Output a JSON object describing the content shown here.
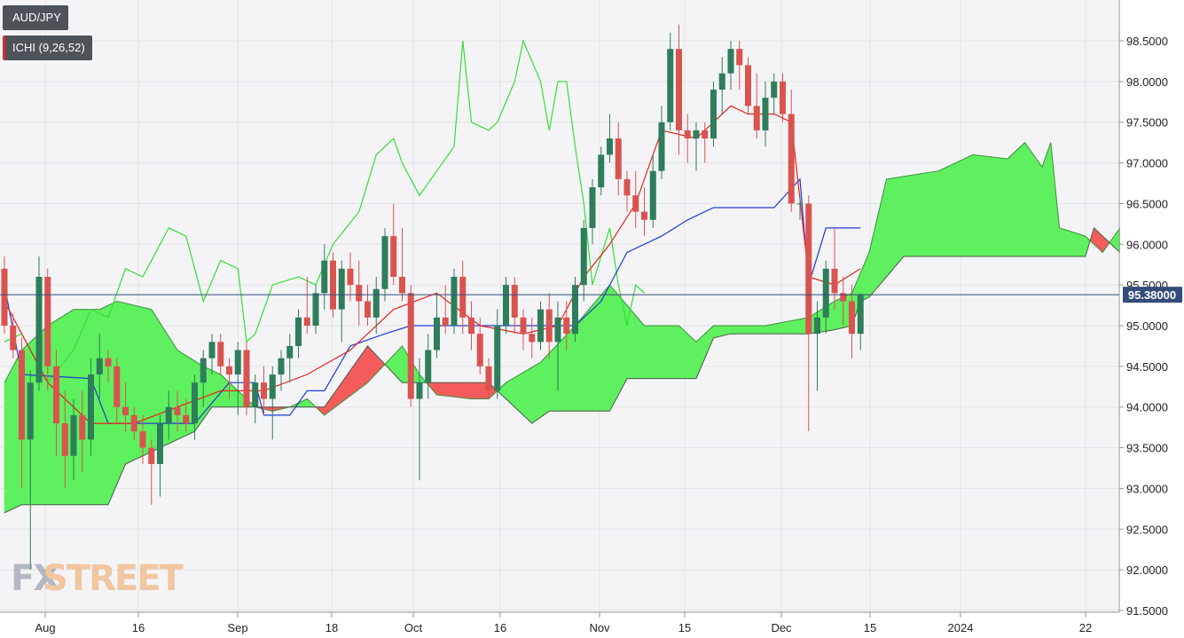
{
  "chart_data": {
    "type": "candlestick",
    "symbol": "AUD/JPY",
    "indicator": "ICHI (9,26,52)",
    "last_price": "95.38000",
    "last_value": 95.38,
    "ylim": [
      91.5,
      98.9
    ],
    "y_ticks": [
      "98.5000",
      "98.0000",
      "97.5000",
      "97.0000",
      "96.5000",
      "96.0000",
      "95.5000",
      "95.0000",
      "94.5000",
      "94.0000",
      "93.5000",
      "93.0000",
      "92.5000",
      "92.0000",
      "91.5000"
    ],
    "x_ticks": [
      "Aug",
      "16",
      "Sep",
      "18",
      "Oct",
      "16",
      "Nov",
      "15",
      "Dec",
      "15",
      "2024",
      "22"
    ],
    "grid": true,
    "colors": {
      "up": "#2e7d5b",
      "down": "#d9534f",
      "tenkan": "#e8201a",
      "kijun": "#1f3ad6",
      "chikou": "#33e033",
      "kumo_bull": "#5ef05e",
      "kumo_bear": "#f45c5c",
      "last_line": "#324d7a"
    },
    "candles": [
      [
        95.7,
        95.85,
        94.9,
        95.0
      ],
      [
        95.0,
        95.15,
        94.6,
        94.7
      ],
      [
        94.7,
        94.85,
        93.0,
        93.6
      ],
      [
        93.6,
        94.45,
        92.0,
        94.3
      ],
      [
        94.3,
        95.85,
        94.2,
        95.6
      ],
      [
        95.6,
        95.7,
        94.2,
        94.5
      ],
      [
        94.5,
        94.7,
        93.4,
        93.8
      ],
      [
        93.8,
        94.2,
        93.0,
        93.4
      ],
      [
        93.4,
        94.1,
        93.1,
        93.9
      ],
      [
        93.9,
        94.2,
        93.2,
        93.6
      ],
      [
        93.6,
        94.6,
        93.4,
        94.4
      ],
      [
        94.4,
        94.9,
        94.1,
        94.6
      ],
      [
        94.6,
        94.7,
        94.3,
        94.5
      ],
      [
        94.5,
        94.6,
        93.8,
        94.0
      ],
      [
        94.0,
        94.3,
        93.7,
        93.9
      ],
      [
        93.9,
        94.0,
        93.6,
        93.7
      ],
      [
        93.7,
        93.9,
        93.3,
        93.5
      ],
      [
        93.5,
        93.6,
        92.8,
        93.3
      ],
      [
        93.3,
        93.9,
        92.9,
        93.8
      ],
      [
        93.8,
        94.2,
        93.6,
        94.0
      ],
      [
        94.0,
        94.2,
        93.7,
        93.9
      ],
      [
        93.9,
        94.1,
        93.7,
        93.8
      ],
      [
        93.8,
        94.4,
        93.6,
        94.3
      ],
      [
        94.3,
        94.7,
        94.0,
        94.6
      ],
      [
        94.6,
        94.9,
        94.4,
        94.8
      ],
      [
        94.8,
        94.9,
        94.4,
        94.5
      ],
      [
        94.5,
        94.6,
        94.1,
        94.4
      ],
      [
        94.4,
        94.8,
        93.9,
        94.7
      ],
      [
        94.7,
        94.8,
        93.9,
        94.0
      ],
      [
        94.0,
        94.4,
        93.8,
        94.3
      ],
      [
        94.3,
        94.5,
        93.9,
        94.1
      ],
      [
        94.1,
        94.5,
        93.6,
        94.4
      ],
      [
        94.4,
        94.7,
        94.2,
        94.6
      ],
      [
        94.6,
        94.9,
        94.3,
        94.75
      ],
      [
        94.75,
        95.2,
        94.6,
        95.1
      ],
      [
        95.1,
        95.6,
        94.9,
        95.0
      ],
      [
        95.0,
        95.5,
        94.9,
        95.4
      ],
      [
        95.4,
        96.0,
        95.2,
        95.8
      ],
      [
        95.8,
        95.9,
        95.1,
        95.2
      ],
      [
        95.2,
        95.8,
        94.8,
        95.7
      ],
      [
        95.7,
        95.9,
        95.3,
        95.5
      ],
      [
        95.5,
        95.8,
        95.0,
        95.3
      ],
      [
        95.3,
        95.5,
        95.0,
        95.1
      ],
      [
        95.1,
        95.6,
        94.9,
        95.45
      ],
      [
        95.45,
        96.2,
        95.3,
        96.1
      ],
      [
        96.1,
        96.5,
        95.5,
        95.6
      ],
      [
        95.6,
        96.2,
        95.3,
        95.4
      ],
      [
        95.4,
        95.5,
        94.0,
        94.1
      ],
      [
        94.1,
        94.6,
        93.1,
        94.3
      ],
      [
        94.3,
        94.9,
        94.1,
        94.7
      ],
      [
        94.7,
        95.4,
        94.6,
        95.1
      ],
      [
        95.1,
        95.5,
        94.9,
        95.0
      ],
      [
        95.0,
        95.7,
        94.9,
        95.6
      ],
      [
        95.6,
        95.8,
        94.9,
        95.1
      ],
      [
        95.1,
        95.3,
        94.7,
        94.9
      ],
      [
        94.9,
        95.1,
        94.4,
        94.5
      ],
      [
        94.5,
        94.6,
        94.1,
        94.2
      ],
      [
        94.2,
        95.2,
        94.1,
        95.0
      ],
      [
        95.0,
        95.6,
        94.9,
        95.5
      ],
      [
        95.5,
        95.6,
        94.9,
        95.1
      ],
      [
        95.1,
        95.2,
        94.7,
        94.9
      ],
      [
        94.9,
        95.1,
        94.6,
        94.8
      ],
      [
        94.8,
        95.3,
        94.7,
        95.2
      ],
      [
        95.2,
        95.4,
        94.6,
        94.8
      ],
      [
        94.8,
        95.3,
        94.2,
        95.1
      ],
      [
        95.1,
        95.3,
        94.7,
        94.9
      ],
      [
        94.9,
        95.6,
        94.8,
        95.5
      ],
      [
        95.5,
        96.3,
        95.3,
        96.2
      ],
      [
        96.2,
        96.8,
        96.0,
        96.7
      ],
      [
        96.7,
        97.2,
        96.6,
        97.1
      ],
      [
        97.1,
        97.6,
        97.0,
        97.3
      ],
      [
        97.3,
        97.5,
        96.6,
        96.8
      ],
      [
        96.8,
        96.9,
        96.4,
        96.6
      ],
      [
        96.6,
        96.9,
        96.2,
        96.4
      ],
      [
        96.4,
        96.7,
        96.1,
        96.3
      ],
      [
        96.3,
        97.1,
        96.2,
        96.9
      ],
      [
        96.9,
        97.7,
        96.8,
        97.5
      ],
      [
        97.5,
        98.6,
        97.4,
        98.4
      ],
      [
        98.4,
        98.7,
        97.1,
        97.4
      ],
      [
        97.4,
        97.6,
        97.0,
        97.3
      ],
      [
        97.3,
        97.5,
        96.9,
        97.4
      ],
      [
        97.4,
        97.5,
        97.0,
        97.3
      ],
      [
        97.3,
        98.0,
        97.2,
        97.9
      ],
      [
        97.9,
        98.3,
        97.6,
        98.1
      ],
      [
        98.1,
        98.5,
        97.9,
        98.4
      ],
      [
        98.4,
        98.5,
        97.9,
        98.2
      ],
      [
        98.2,
        98.3,
        97.6,
        97.7
      ],
      [
        97.7,
        98.1,
        97.3,
        97.4
      ],
      [
        97.4,
        98.0,
        97.2,
        97.8
      ],
      [
        97.8,
        98.1,
        97.6,
        98.0
      ],
      [
        98.0,
        98.1,
        97.5,
        97.6
      ],
      [
        97.6,
        97.9,
        96.4,
        96.5
      ],
      [
        96.5,
        96.6,
        96.3,
        96.5
      ],
      [
        96.5,
        96.6,
        93.7,
        94.9
      ],
      [
        94.9,
        95.3,
        94.2,
        95.1
      ],
      [
        95.1,
        95.8,
        94.9,
        95.7
      ],
      [
        95.7,
        96.2,
        95.2,
        95.4
      ],
      [
        95.4,
        95.6,
        95.0,
        95.3
      ],
      [
        95.3,
        95.5,
        94.6,
        94.9
      ],
      [
        94.9,
        95.4,
        94.7,
        95.38
      ]
    ],
    "tenkan": [
      [
        0,
        95.3
      ],
      [
        5,
        94.3
      ],
      [
        10,
        93.8
      ],
      [
        15,
        93.8
      ],
      [
        20,
        94.0
      ],
      [
        25,
        94.2
      ],
      [
        30,
        94.2
      ],
      [
        35,
        94.4
      ],
      [
        40,
        94.7
      ],
      [
        45,
        95.2
      ],
      [
        50,
        95.4
      ],
      [
        55,
        95.0
      ],
      [
        60,
        94.9
      ],
      [
        64,
        95.0
      ],
      [
        67,
        95.6
      ],
      [
        70,
        96.0
      ],
      [
        73,
        96.5
      ],
      [
        76,
        97.4
      ],
      [
        80,
        97.3
      ],
      [
        84,
        97.7
      ],
      [
        86,
        97.6
      ],
      [
        89,
        97.6
      ],
      [
        91,
        97.5
      ],
      [
        93,
        95.6
      ],
      [
        96,
        95.5
      ],
      [
        99,
        95.7
      ]
    ],
    "kijun": [
      [
        0,
        95.5
      ],
      [
        2,
        94.4
      ],
      [
        10,
        94.35
      ],
      [
        12,
        93.8
      ],
      [
        22,
        93.8
      ],
      [
        26,
        94.3
      ],
      [
        29,
        94.3
      ],
      [
        30,
        93.9
      ],
      [
        33,
        93.9
      ],
      [
        35,
        94.2
      ],
      [
        37,
        94.2
      ],
      [
        40,
        94.75
      ],
      [
        44,
        94.9
      ],
      [
        47,
        95.0
      ],
      [
        49,
        95.0
      ],
      [
        52,
        95.0
      ],
      [
        62,
        95.0
      ],
      [
        66,
        95.0
      ],
      [
        69,
        95.3
      ],
      [
        72,
        95.9
      ],
      [
        76,
        96.1
      ],
      [
        79,
        96.3
      ],
      [
        82,
        96.45
      ],
      [
        89,
        96.45
      ],
      [
        92,
        96.8
      ],
      [
        93,
        95.5
      ],
      [
        95,
        96.2
      ],
      [
        99,
        96.2
      ]
    ],
    "chikou": [
      [
        0,
        94.8
      ],
      [
        2,
        94.9
      ],
      [
        5,
        94.3
      ],
      [
        8,
        94.7
      ],
      [
        10,
        95.2
      ],
      [
        12,
        95.1
      ],
      [
        14,
        95.7
      ],
      [
        16,
        95.6
      ],
      [
        18,
        96.0
      ],
      [
        19,
        96.2
      ],
      [
        21,
        96.1
      ],
      [
        23,
        95.3
      ],
      [
        25,
        95.8
      ],
      [
        27,
        95.7
      ],
      [
        28,
        94.8
      ],
      [
        29,
        94.9
      ],
      [
        31,
        95.5
      ],
      [
        34,
        95.6
      ],
      [
        36,
        95.5
      ],
      [
        38,
        96.0
      ],
      [
        41,
        96.4
      ],
      [
        43,
        97.1
      ],
      [
        45,
        97.3
      ],
      [
        46,
        97.0
      ],
      [
        48,
        96.6
      ],
      [
        50,
        96.9
      ],
      [
        52,
        97.2
      ],
      [
        53,
        98.5
      ],
      [
        54,
        97.5
      ],
      [
        56,
        97.4
      ],
      [
        57,
        97.5
      ],
      [
        59,
        98.0
      ],
      [
        60,
        98.5
      ],
      [
        62,
        98.0
      ],
      [
        63,
        97.4
      ],
      [
        64,
        98.0
      ],
      [
        65,
        98.0
      ],
      [
        66,
        97.2
      ],
      [
        67,
        96.5
      ],
      [
        68,
        95.5
      ],
      [
        70,
        96.2
      ],
      [
        71,
        95.5
      ],
      [
        72,
        95.0
      ],
      [
        73,
        95.5
      ],
      [
        74,
        95.4
      ]
    ],
    "span_a": [
      [
        0,
        94.3
      ],
      [
        2,
        94.7
      ],
      [
        5,
        95.0
      ],
      [
        8,
        95.2
      ],
      [
        11,
        95.2
      ],
      [
        13,
        95.3
      ],
      [
        17,
        95.2
      ],
      [
        20,
        94.7
      ],
      [
        23,
        94.5
      ],
      [
        25,
        94.4
      ],
      [
        27,
        94.2
      ],
      [
        29,
        94.0
      ],
      [
        31,
        93.95
      ],
      [
        33,
        94.0
      ],
      [
        35,
        94.1
      ],
      [
        37,
        93.9
      ],
      [
        42,
        94.3
      ],
      [
        46,
        94.75
      ],
      [
        48,
        94.4
      ],
      [
        50,
        94.15
      ],
      [
        54,
        94.1
      ],
      [
        56,
        94.1
      ],
      [
        58,
        94.3
      ],
      [
        62,
        94.55
      ],
      [
        66,
        95.0
      ],
      [
        70,
        95.5
      ],
      [
        74,
        95.0
      ],
      [
        78,
        95.0
      ],
      [
        80,
        94.8
      ],
      [
        82,
        95.0
      ],
      [
        88,
        95.0
      ],
      [
        93,
        95.1
      ],
      [
        96,
        95.3
      ],
      [
        98,
        95.4
      ],
      [
        100,
        95.9
      ],
      [
        102,
        96.8
      ],
      [
        108,
        96.9
      ],
      [
        112,
        97.1
      ],
      [
        116,
        97.05
      ],
      [
        118,
        97.25
      ],
      [
        120,
        96.95
      ],
      [
        121,
        97.25
      ],
      [
        122,
        96.2
      ],
      [
        125,
        96.1
      ],
      [
        127,
        95.9
      ],
      [
        129,
        96.2
      ]
    ],
    "span_b": [
      [
        0,
        92.7
      ],
      [
        2,
        92.8
      ],
      [
        12,
        92.8
      ],
      [
        14,
        93.3
      ],
      [
        18,
        93.5
      ],
      [
        22,
        93.7
      ],
      [
        24,
        94.0
      ],
      [
        26,
        94.0
      ],
      [
        30,
        94.0
      ],
      [
        33,
        94.0
      ],
      [
        35,
        94.0
      ],
      [
        37,
        94.0
      ],
      [
        42,
        94.75
      ],
      [
        46,
        94.3
      ],
      [
        48,
        94.3
      ],
      [
        50,
        94.3
      ],
      [
        54,
        94.3
      ],
      [
        56,
        94.3
      ],
      [
        58,
        94.1
      ],
      [
        61,
        93.8
      ],
      [
        63,
        93.95
      ],
      [
        66,
        93.95
      ],
      [
        70,
        93.95
      ],
      [
        72,
        94.35
      ],
      [
        80,
        94.35
      ],
      [
        82,
        94.85
      ],
      [
        84,
        94.9
      ],
      [
        88,
        94.9
      ],
      [
        93,
        94.9
      ],
      [
        96,
        94.95
      ],
      [
        98,
        95.0
      ],
      [
        99,
        95.3
      ],
      [
        100,
        95.35
      ],
      [
        102,
        95.6
      ],
      [
        104,
        95.85
      ],
      [
        108,
        95.85
      ],
      [
        112,
        95.85
      ],
      [
        116,
        95.85
      ],
      [
        125,
        95.85
      ],
      [
        126,
        96.2
      ],
      [
        129,
        95.9
      ]
    ]
  }
}
